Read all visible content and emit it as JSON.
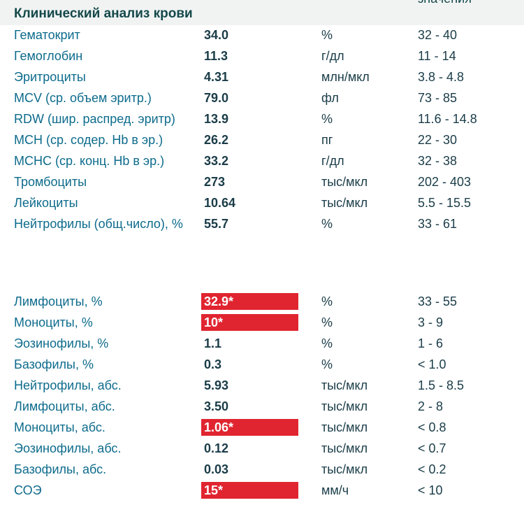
{
  "header": {
    "title": "Клинический анализ крови",
    "column_note": "значения"
  },
  "groups": [
    {
      "rows": [
        {
          "name": "Гематокрит",
          "value": "34.0",
          "unit": "%",
          "range": "32 - 40",
          "flagged": false
        },
        {
          "name": "Гемоглобин",
          "value": "11.3",
          "unit": "г/дл",
          "range": "11 - 14",
          "flagged": false
        },
        {
          "name": "Эритроциты",
          "value": "4.31",
          "unit": "млн/мкл",
          "range": "3.8 - 4.8",
          "flagged": false
        },
        {
          "name": "MCV (ср. объем эритр.)",
          "value": "79.0",
          "unit": "фл",
          "range": "73 - 85",
          "flagged": false
        },
        {
          "name": "RDW (шир. распред. эритр)",
          "value": "13.9",
          "unit": "%",
          "range": "11.6 - 14.8",
          "flagged": false
        },
        {
          "name": "MCH (ср. содер. Hb в эр.)",
          "value": "26.2",
          "unit": "пг",
          "range": "22 - 30",
          "flagged": false
        },
        {
          "name": "MCHC (ср. конц. Hb в эр.)",
          "value": "33.2",
          "unit": "г/дл",
          "range": "32 - 38",
          "flagged": false
        },
        {
          "name": "Тромбоциты",
          "value": "273",
          "unit": "тыс/мкл",
          "range": "202 - 403",
          "flagged": false
        },
        {
          "name": "Лейкоциты",
          "value": "10.64",
          "unit": "тыс/мкл",
          "range": "5.5 - 15.5",
          "flagged": false
        },
        {
          "name": "Нейтрофилы (общ.число), %",
          "value": "55.7",
          "unit": "%",
          "range": "33 - 61",
          "flagged": false
        }
      ]
    },
    {
      "rows": [
        {
          "name": "Лимфоциты, %",
          "value": "32.9*",
          "unit": "%",
          "range": "33 - 55",
          "flagged": true
        },
        {
          "name": "Моноциты, %",
          "value": "10*",
          "unit": "%",
          "range": "3 - 9",
          "flagged": true
        },
        {
          "name": "Эозинофилы, %",
          "value": "1.1",
          "unit": "%",
          "range": "1 - 6",
          "flagged": false
        },
        {
          "name": "Базофилы, %",
          "value": "0.3",
          "unit": "%",
          "range": "< 1.0",
          "flagged": false
        },
        {
          "name": "Нейтрофилы, абс.",
          "value": "5.93",
          "unit": "тыс/мкл",
          "range": "1.5 - 8.5",
          "flagged": false
        },
        {
          "name": "Лимфоциты, абс.",
          "value": "3.50",
          "unit": "тыс/мкл",
          "range": "2 - 8",
          "flagged": false
        },
        {
          "name": "Моноциты, абс.",
          "value": "1.06*",
          "unit": "тыс/мкл",
          "range": "< 0.8",
          "flagged": true
        },
        {
          "name": "Эозинофилы, абс.",
          "value": "0.12",
          "unit": "тыс/мкл",
          "range": "< 0.7",
          "flagged": false
        },
        {
          "name": "Базофилы, абс.",
          "value": "0.03",
          "unit": "тыс/мкл",
          "range": "< 0.2",
          "flagged": false
        },
        {
          "name": "СОЭ",
          "value": "15*",
          "unit": "мм/ч",
          "range": "< 10",
          "flagged": true
        }
      ]
    }
  ]
}
